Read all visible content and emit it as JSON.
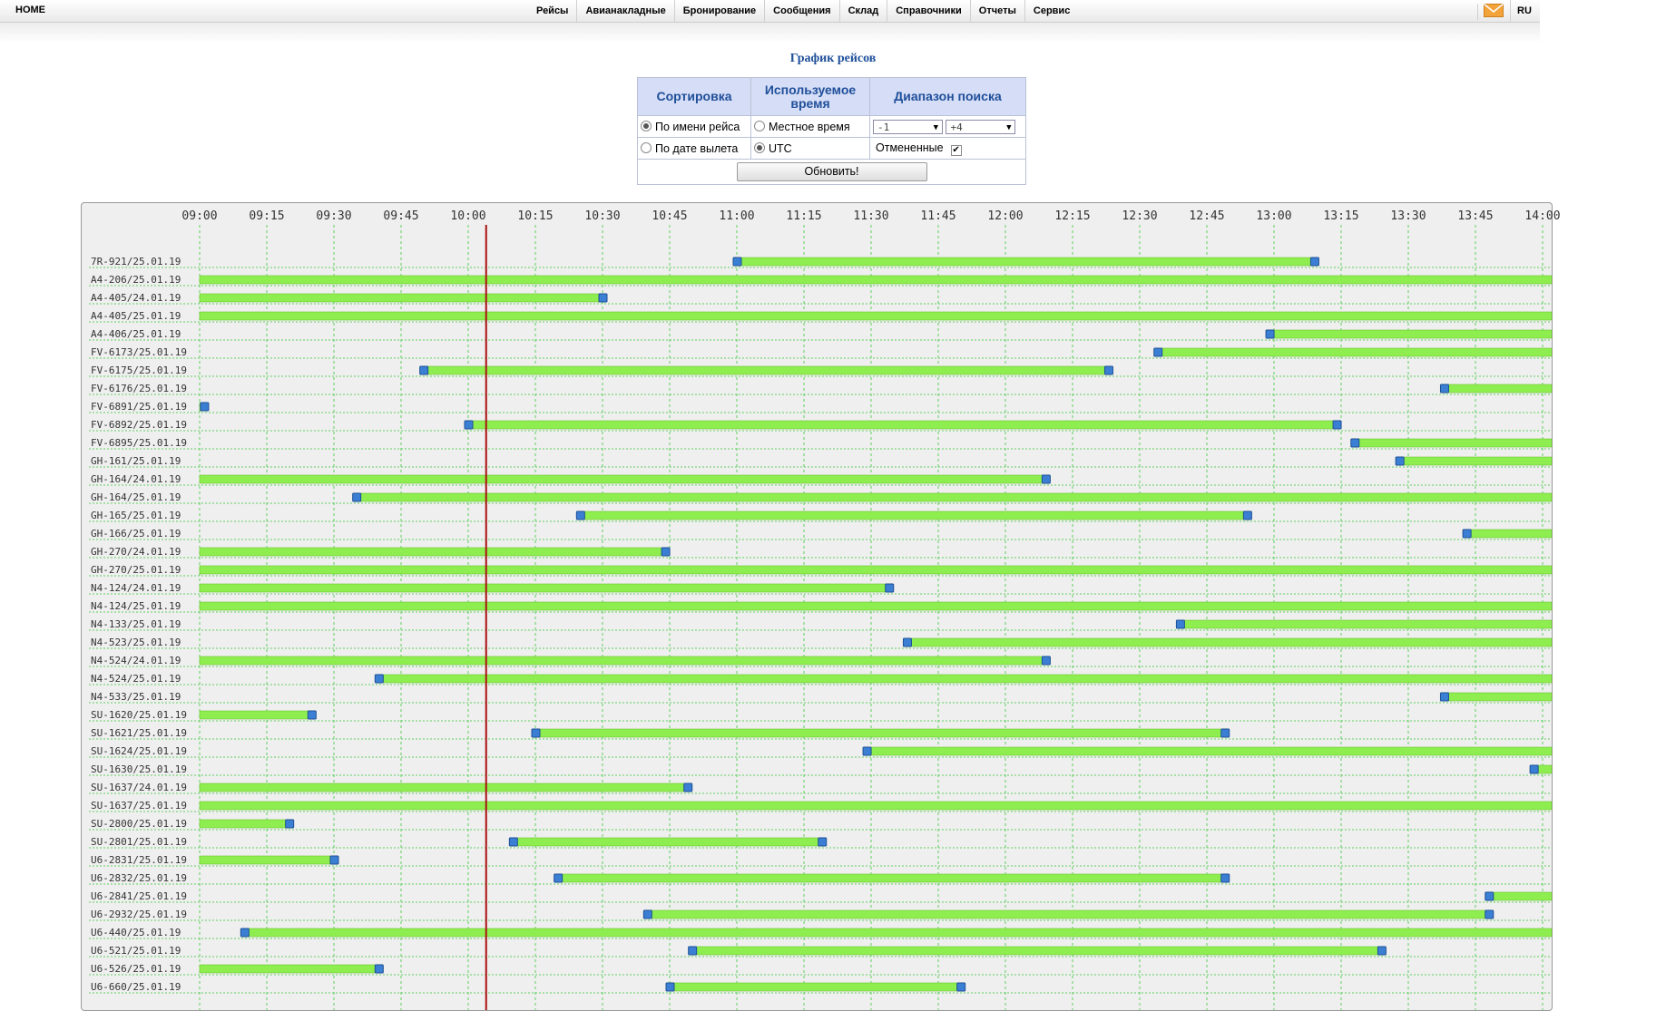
{
  "nav": {
    "home": "HOME",
    "items": [
      "Рейсы",
      "Авианакладные",
      "Бронирование",
      "Сообщения",
      "Склад",
      "Справочники",
      "Отчеты",
      "Сервис"
    ],
    "language": "RU",
    "mail_icon": "envelope-icon"
  },
  "page": {
    "title": "График рейсов"
  },
  "filters": {
    "sort_header": "Сортировка",
    "time_header": "Используемое время",
    "range_header": "Диапазон поиска",
    "sort_by_name": "По имени рейса",
    "sort_by_date": "По дате вылета",
    "local_time": "Местное время",
    "utc": "UTC",
    "range_from": "-1",
    "range_to": "+4",
    "cancelled": "Отмененные",
    "cancelled_checked": true,
    "sort_selected": "name",
    "time_selected": "utc",
    "refresh": "Обновить!"
  },
  "chart_data": {
    "type": "gantt",
    "time_ticks": [
      "09:00",
      "09:15",
      "09:30",
      "09:45",
      "10:00",
      "10:15",
      "10:30",
      "10:45",
      "11:00",
      "11:15",
      "11:30",
      "11:45",
      "12:00",
      "12:15",
      "12:30",
      "12:45",
      "13:00",
      "13:15",
      "13:30",
      "13:45",
      "14:00"
    ],
    "current_time": "10:04",
    "colors": {
      "bar": "#8fee4f",
      "marker": "#3b7fd4",
      "now_line": "#aa1111",
      "grid": "#5fcf5f"
    },
    "flights": [
      {
        "label": "7R-921/25.01.19",
        "start": "11:00",
        "end": "13:09"
      },
      {
        "label": "A4-206/25.01.19",
        "start": "08:30",
        "end": "15:00"
      },
      {
        "label": "A4-405/24.01.19",
        "start": "08:30",
        "end": "10:30"
      },
      {
        "label": "A4-405/25.01.19",
        "start": "08:30",
        "end": "15:00"
      },
      {
        "label": "A4-406/25.01.19",
        "start": "12:59",
        "end": "15:00"
      },
      {
        "label": "FV-6173/25.01.19",
        "start": "12:34",
        "end": "15:00"
      },
      {
        "label": "FV-6175/25.01.19",
        "start": "09:50",
        "end": "12:23"
      },
      {
        "label": "FV-6176/25.01.19",
        "start": "13:38",
        "end": "15:00"
      },
      {
        "label": "FV-6891/25.01.19",
        "start": "08:30",
        "end": "09:01"
      },
      {
        "label": "FV-6892/25.01.19",
        "start": "10:00",
        "end": "13:14"
      },
      {
        "label": "FV-6895/25.01.19",
        "start": "13:18",
        "end": "15:00"
      },
      {
        "label": "GH-161/25.01.19",
        "start": "13:28",
        "end": "15:00"
      },
      {
        "label": "GH-164/24.01.19",
        "start": "08:30",
        "end": "12:09"
      },
      {
        "label": "GH-164/25.01.19",
        "start": "09:35",
        "end": "15:00"
      },
      {
        "label": "GH-165/25.01.19",
        "start": "10:25",
        "end": "12:54"
      },
      {
        "label": "GH-166/25.01.19",
        "start": "13:43",
        "end": "15:00"
      },
      {
        "label": "GH-270/24.01.19",
        "start": "08:30",
        "end": "10:44"
      },
      {
        "label": "GH-270/25.01.19",
        "start": "08:30",
        "end": "15:00"
      },
      {
        "label": "N4-124/24.01.19",
        "start": "08:30",
        "end": "11:34"
      },
      {
        "label": "N4-124/25.01.19",
        "start": "08:30",
        "end": "15:00"
      },
      {
        "label": "N4-133/25.01.19",
        "start": "12:39",
        "end": "15:00"
      },
      {
        "label": "N4-523/25.01.19",
        "start": "11:38",
        "end": "15:00"
      },
      {
        "label": "N4-524/24.01.19",
        "start": "08:30",
        "end": "12:09"
      },
      {
        "label": "N4-524/25.01.19",
        "start": "09:40",
        "end": "15:00"
      },
      {
        "label": "N4-533/25.01.19",
        "start": "13:38",
        "end": "15:00"
      },
      {
        "label": "SU-1620/25.01.19",
        "start": "08:30",
        "end": "09:25"
      },
      {
        "label": "SU-1621/25.01.19",
        "start": "10:15",
        "end": "12:49"
      },
      {
        "label": "SU-1624/25.01.19",
        "start": "11:29",
        "end": "15:00"
      },
      {
        "label": "SU-1630/25.01.19",
        "start": "13:58",
        "end": "15:00"
      },
      {
        "label": "SU-1637/24.01.19",
        "start": "08:30",
        "end": "10:49"
      },
      {
        "label": "SU-1637/25.01.19",
        "start": "08:30",
        "end": "15:00"
      },
      {
        "label": "SU-2800/25.01.19",
        "start": "08:30",
        "end": "09:20"
      },
      {
        "label": "SU-2801/25.01.19",
        "start": "10:10",
        "end": "11:19"
      },
      {
        "label": "U6-2831/25.01.19",
        "start": "08:30",
        "end": "09:30"
      },
      {
        "label": "U6-2832/25.01.19",
        "start": "10:20",
        "end": "12:49"
      },
      {
        "label": "U6-2841/25.01.19",
        "start": "13:48",
        "end": "15:00"
      },
      {
        "label": "U6-2932/25.01.19",
        "start": "10:40",
        "end": "13:48"
      },
      {
        "label": "U6-440/25.01.19",
        "start": "09:10",
        "end": "15:00"
      },
      {
        "label": "U6-521/25.01.19",
        "start": "10:50",
        "end": "13:24"
      },
      {
        "label": "U6-526/25.01.19",
        "start": "08:30",
        "end": "09:40"
      },
      {
        "label": "U6-660/25.01.19",
        "start": "10:45",
        "end": "11:50"
      }
    ]
  }
}
